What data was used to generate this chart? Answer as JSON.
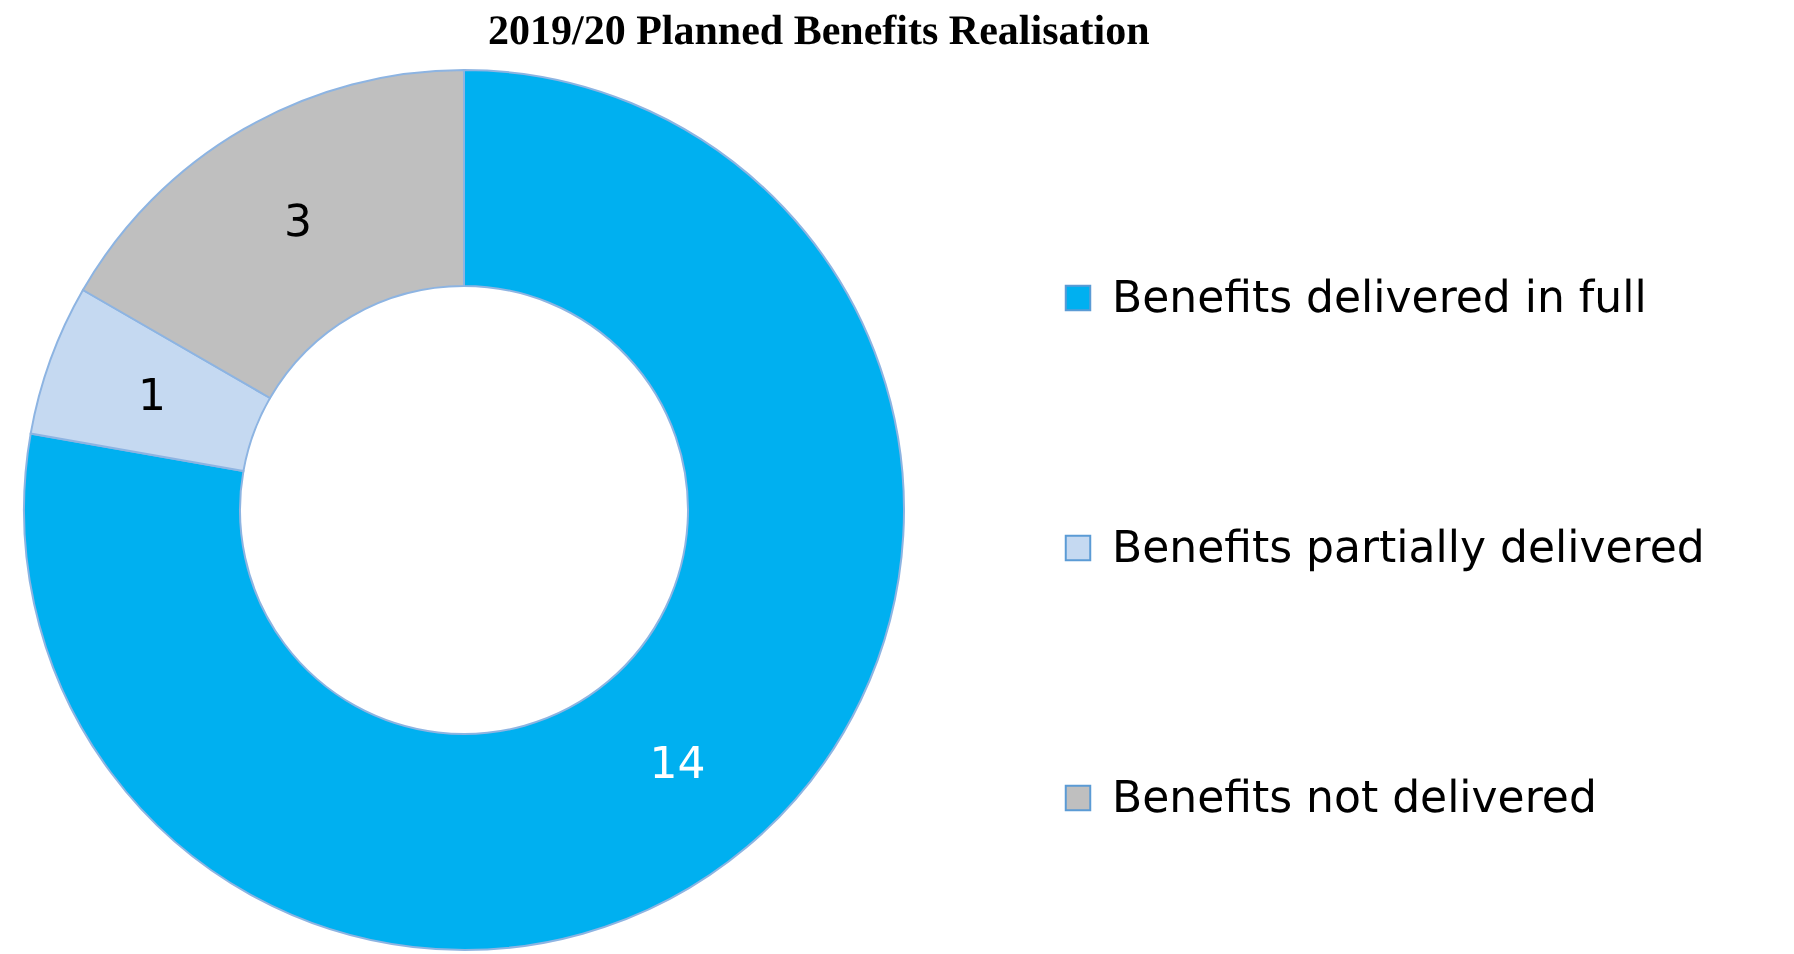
{
  "chart_data": {
    "type": "donut",
    "title": "2019/20 Planned Benefits Realisation",
    "categories": [
      "Benefits delivered in full",
      "Benefits partially delivered",
      "Benefits not delivered"
    ],
    "values": [
      14,
      1,
      3
    ],
    "colors": [
      "#00b0f0",
      "#c5d9f1",
      "#bfbfbf"
    ],
    "data_labels": true,
    "legend": "right"
  }
}
